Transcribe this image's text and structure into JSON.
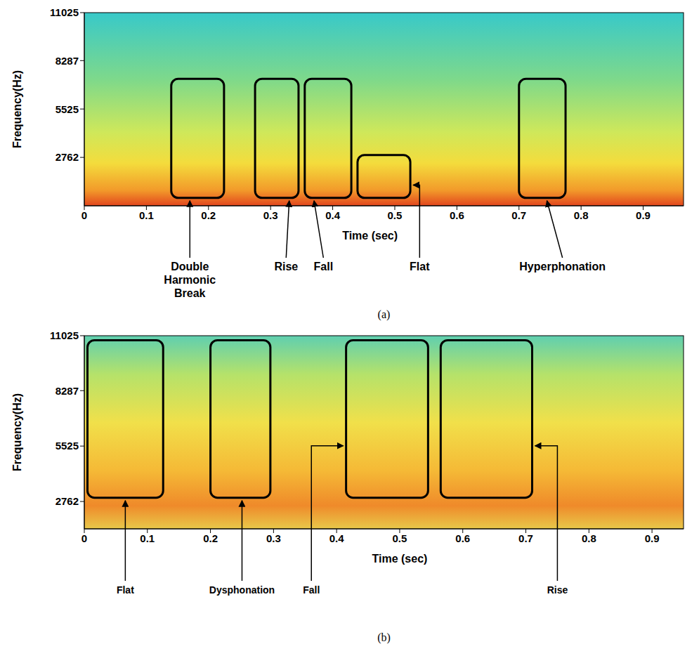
{
  "chart_data": [
    {
      "type": "spectrogram",
      "title": "(a)",
      "x_label": "Time (sec)",
      "y_label": "Frequency(Hz)",
      "xlim": [
        0,
        0.965
      ],
      "ylim": [
        0,
        11025
      ],
      "xticks": [
        0,
        0.1,
        0.2,
        0.3,
        0.4,
        0.5,
        0.6,
        0.7,
        0.8,
        0.9
      ],
      "yticks": [
        2762,
        5525,
        8287,
        11025
      ],
      "annotations": [
        {
          "label": "Double Harmonic Break",
          "x": [
            0.14,
            0.225
          ],
          "y": [
            450,
            7250
          ]
        },
        {
          "label": "Rise",
          "x": [
            0.275,
            0.345
          ],
          "y": [
            450,
            7250
          ]
        },
        {
          "label": "Fall",
          "x": [
            0.355,
            0.43
          ],
          "y": [
            450,
            7250
          ]
        },
        {
          "label": "Flat",
          "x": [
            0.44,
            0.525
          ],
          "y": [
            450,
            2900
          ]
        },
        {
          "label": "Hyperphonation",
          "x": [
            0.7,
            0.775
          ],
          "y": [
            450,
            7250
          ]
        }
      ]
    },
    {
      "type": "spectrogram",
      "title": "(b)",
      "x_label": "Time (sec)",
      "y_label": "Frequency(Hz)",
      "xlim": [
        0,
        0.95
      ],
      "ylim": [
        1400,
        11025
      ],
      "xticks": [
        0,
        0.1,
        0.2,
        0.3,
        0.4,
        0.5,
        0.6,
        0.7,
        0.8,
        0.9
      ],
      "yticks": [
        2762,
        5525,
        8287,
        11025
      ],
      "annotations": [
        {
          "label": "Flat",
          "x": [
            0.005,
            0.125
          ],
          "y": [
            2950,
            10800
          ]
        },
        {
          "label": "Dysphonation",
          "x": [
            0.2,
            0.295
          ],
          "y": [
            2950,
            10800
          ]
        },
        {
          "label": "Fall",
          "x": [
            0.415,
            0.545
          ],
          "y": [
            2950,
            10800
          ]
        },
        {
          "label": "Rise",
          "x": [
            0.565,
            0.71
          ],
          "y": [
            2950,
            10800
          ]
        }
      ]
    }
  ]
}
